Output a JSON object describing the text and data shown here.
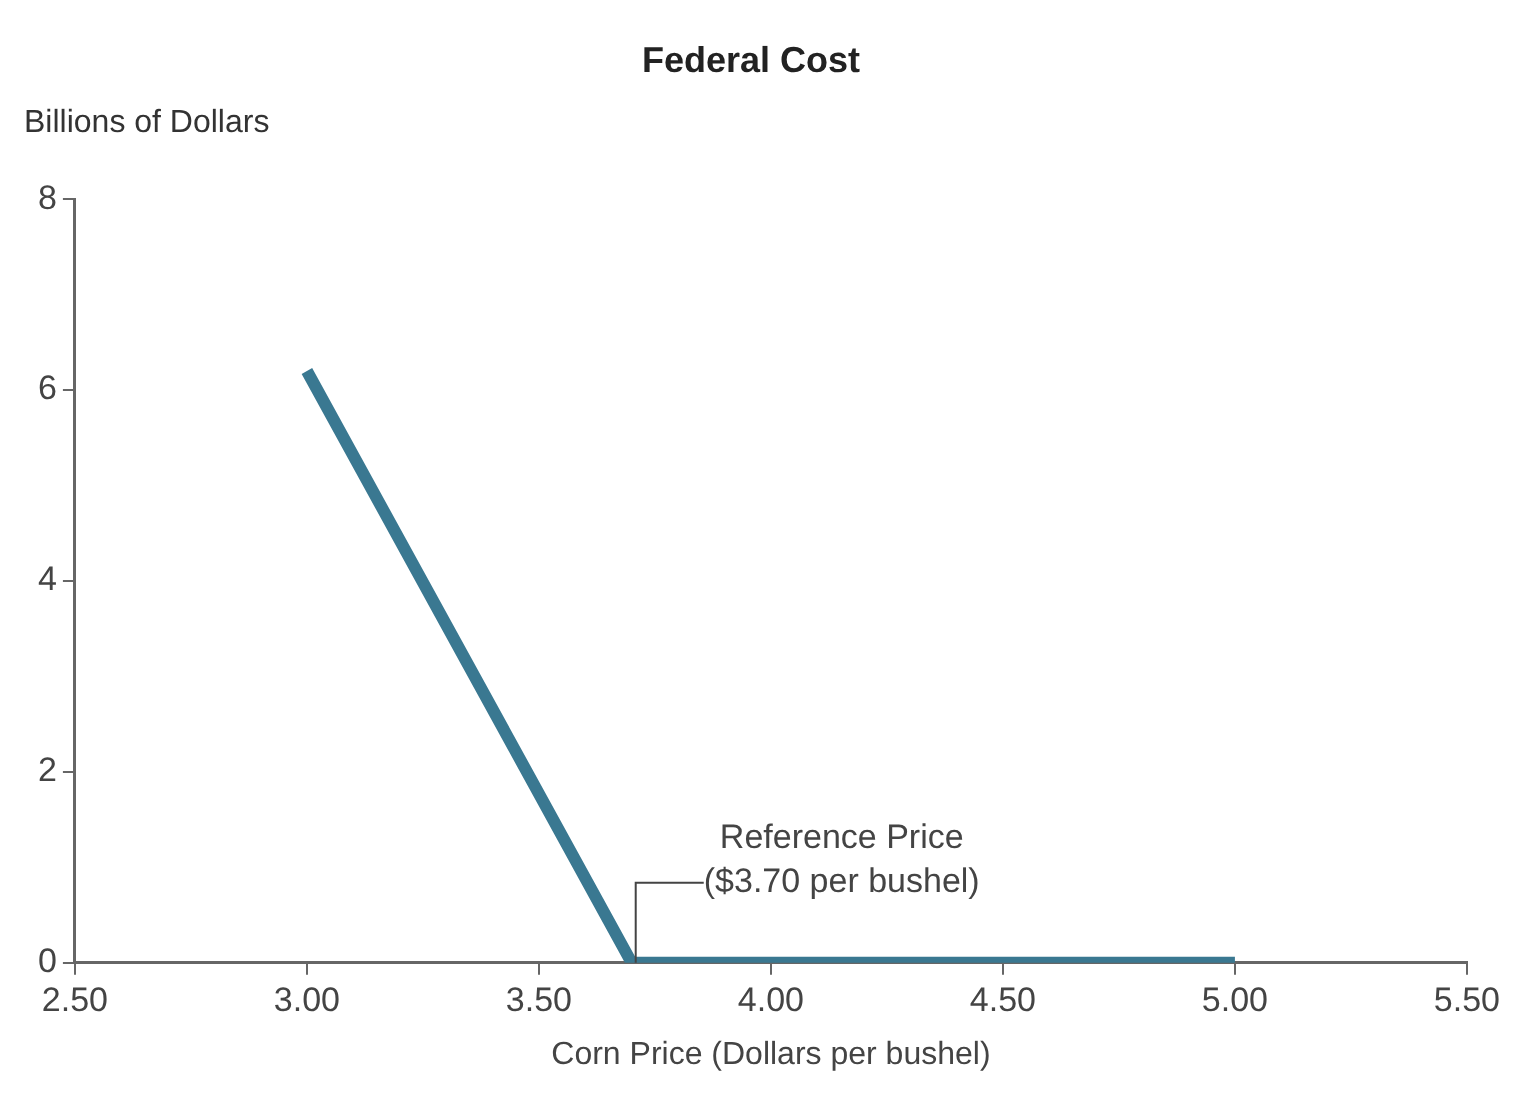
{
  "chart_data": {
    "type": "line",
    "title": "Federal Cost",
    "xlabel": "Corn Price (Dollars per bushel)",
    "ylabel": "Billions of Dollars",
    "x": [
      3.0,
      3.7,
      5.0
    ],
    "values": [
      6.2,
      0,
      0
    ],
    "color": "#3a7891",
    "marker": "none",
    "xlim": [
      2.5,
      5.5
    ],
    "xticks": [
      {
        "value": 2.5,
        "label": "2.50"
      },
      {
        "value": 3.0,
        "label": "3.00"
      },
      {
        "value": 3.5,
        "label": "3.50"
      },
      {
        "value": 4.0,
        "label": "4.00"
      },
      {
        "value": 4.5,
        "label": "4.50"
      },
      {
        "value": 5.0,
        "label": "5.00"
      },
      {
        "value": 5.5,
        "label": "5.50"
      }
    ],
    "ylim": [
      0,
      8
    ],
    "yticks": [
      0,
      2,
      4,
      6,
      8
    ],
    "annotations": [
      {
        "text": "Reference Price\n($3.70 per bushel)",
        "x": 3.7,
        "y": 0
      }
    ]
  }
}
